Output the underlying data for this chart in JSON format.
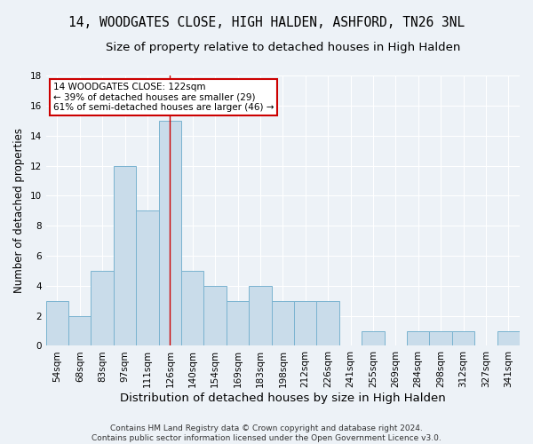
{
  "title": "14, WOODGATES CLOSE, HIGH HALDEN, ASHFORD, TN26 3NL",
  "subtitle": "Size of property relative to detached houses in High Halden",
  "xlabel": "Distribution of detached houses by size in High Halden",
  "ylabel": "Number of detached properties",
  "footer_line1": "Contains HM Land Registry data © Crown copyright and database right 2024.",
  "footer_line2": "Contains public sector information licensed under the Open Government Licence v3.0.",
  "bin_labels": [
    "54sqm",
    "68sqm",
    "83sqm",
    "97sqm",
    "111sqm",
    "126sqm",
    "140sqm",
    "154sqm",
    "169sqm",
    "183sqm",
    "198sqm",
    "212sqm",
    "226sqm",
    "241sqm",
    "255sqm",
    "269sqm",
    "284sqm",
    "298sqm",
    "312sqm",
    "327sqm",
    "341sqm"
  ],
  "bar_heights": [
    3,
    2,
    5,
    12,
    9,
    15,
    5,
    4,
    3,
    4,
    3,
    3,
    3,
    0,
    1,
    0,
    1,
    1,
    1,
    0,
    1
  ],
  "bar_color": "#c9dcea",
  "bar_edge_color": "#7ab3d0",
  "ylim": [
    0,
    18
  ],
  "yticks": [
    0,
    2,
    4,
    6,
    8,
    10,
    12,
    14,
    16,
    18
  ],
  "property_bin_index": 5,
  "vline_color": "#cc0000",
  "annotation_line1": "14 WOODGATES CLOSE: 122sqm",
  "annotation_line2": "← 39% of detached houses are smaller (29)",
  "annotation_line3": "61% of semi-detached houses are larger (46) →",
  "annotation_box_color": "#cc0000",
  "background_color": "#edf2f7",
  "grid_color": "#ffffff",
  "title_fontsize": 10.5,
  "subtitle_fontsize": 9.5,
  "tick_fontsize": 7.5,
  "ylabel_fontsize": 8.5,
  "xlabel_fontsize": 9.5,
  "footer_fontsize": 6.5
}
